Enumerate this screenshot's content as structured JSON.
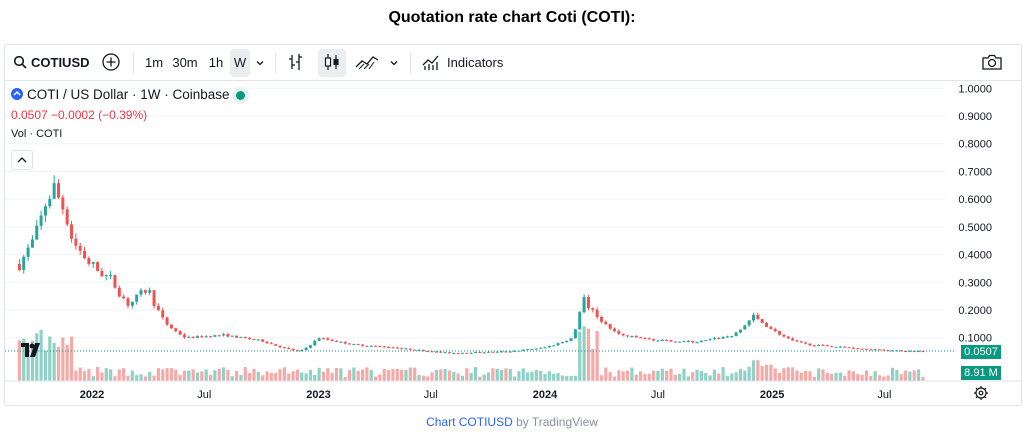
{
  "page_title": "Quotation rate chart Coti (COTI):",
  "toolbar": {
    "symbol": "COTIUSD",
    "intervals": [
      "1m",
      "30m",
      "1h",
      "W"
    ],
    "active_interval": "W",
    "indicators_label": "Indicators"
  },
  "legend": {
    "title": "COTI / US Dollar · 1W · Coinbase",
    "last_price": "0.0507",
    "change": "−0.0002 (−0.39%)",
    "volume_label": "Vol · COTI"
  },
  "badges": {
    "price": "0.0507",
    "volume": "8.91 M"
  },
  "footer": {
    "link_text": "Chart COTIUSD",
    "suffix": " by TradingView"
  },
  "colors": {
    "up": "#26a69a",
    "down": "#ef5350",
    "up_volume": "#8fd1c5",
    "down_volume": "#f7a9a7",
    "badge": "#089981",
    "link": "#2962ff"
  },
  "chart_data": {
    "type": "candlestick",
    "interval": "1W",
    "price_axis": {
      "range": [
        0,
        1.0
      ],
      "ticks": [
        "0.1000",
        "0.2000",
        "0.3000",
        "0.4000",
        "0.5000",
        "0.6000",
        "0.7000",
        "0.8000",
        "0.9000",
        "1.0000"
      ]
    },
    "x_axis_labels": [
      "2022",
      "Jul",
      "2023",
      "Jul",
      "2024",
      "Jul",
      "2025",
      "Jul"
    ],
    "last_price": 0.0507,
    "last_volume": "8.91 M",
    "close_anchors": [
      {
        "date": "2021-09",
        "close": 0.35
      },
      {
        "date": "2021-10",
        "close": 0.46
      },
      {
        "date": "2021-10-20",
        "close": 0.6
      },
      {
        "date": "2021-11",
        "close": 0.64
      },
      {
        "date": "2021-11-20",
        "close": 0.55
      },
      {
        "date": "2021-12",
        "close": 0.45
      },
      {
        "date": "2022-01",
        "close": 0.36
      },
      {
        "date": "2022-02",
        "close": 0.31
      },
      {
        "date": "2022-03",
        "close": 0.22
      },
      {
        "date": "2022-04",
        "close": 0.28
      },
      {
        "date": "2022-05",
        "close": 0.15
      },
      {
        "date": "2022-06",
        "close": 0.1
      },
      {
        "date": "2022-08",
        "close": 0.11
      },
      {
        "date": "2022-10",
        "close": 0.09
      },
      {
        "date": "2022-12",
        "close": 0.05
      },
      {
        "date": "2023-01",
        "close": 0.1
      },
      {
        "date": "2023-03",
        "close": 0.075
      },
      {
        "date": "2023-05",
        "close": 0.065
      },
      {
        "date": "2023-08",
        "close": 0.045
      },
      {
        "date": "2023-11",
        "close": 0.05
      },
      {
        "date": "2024-01",
        "close": 0.065
      },
      {
        "date": "2024-02-15",
        "close": 0.1
      },
      {
        "date": "2024-03",
        "close": 0.25
      },
      {
        "date": "2024-04",
        "close": 0.16
      },
      {
        "date": "2024-05",
        "close": 0.11
      },
      {
        "date": "2024-07",
        "close": 0.09
      },
      {
        "date": "2024-09",
        "close": 0.085
      },
      {
        "date": "2024-11",
        "close": 0.11
      },
      {
        "date": "2024-12",
        "close": 0.18
      },
      {
        "date": "2025-01",
        "close": 0.13
      },
      {
        "date": "2025-02",
        "close": 0.09
      },
      {
        "date": "2025-03",
        "close": 0.075
      },
      {
        "date": "2025-05",
        "close": 0.065
      },
      {
        "date": "2025-07",
        "close": 0.055
      },
      {
        "date": "2025-09",
        "close": 0.0507
      }
    ]
  }
}
